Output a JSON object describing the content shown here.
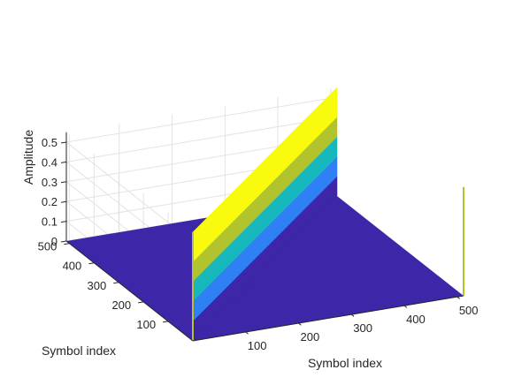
{
  "chart_data": {
    "type": "surface3d",
    "title": "",
    "xlabel": "Symbol index",
    "ylabel": "Symbol index",
    "zlabel": "Amplitude",
    "x_ticks": [
      100,
      200,
      300,
      400,
      500
    ],
    "y_ticks": [
      100,
      200,
      300,
      400,
      500
    ],
    "z_ticks": [
      0,
      0.1,
      0.2,
      0.3,
      0.4,
      0.5
    ],
    "xlim": [
      0,
      512
    ],
    "ylim": [
      0,
      512
    ],
    "zlim": [
      0,
      0.55
    ],
    "grid": true,
    "colormap": [
      "#3e26a8",
      "#2f80f4",
      "#17b8bd",
      "#26c8a0",
      "#b1c42d",
      "#f9fb0e"
    ],
    "surface": {
      "description": "diagonal ridge along x = y",
      "ridge_height": 0.55,
      "base_level": 0
    },
    "side_traces": {
      "x_max_wall": 0.55,
      "y_max_wall": 0.55
    }
  }
}
